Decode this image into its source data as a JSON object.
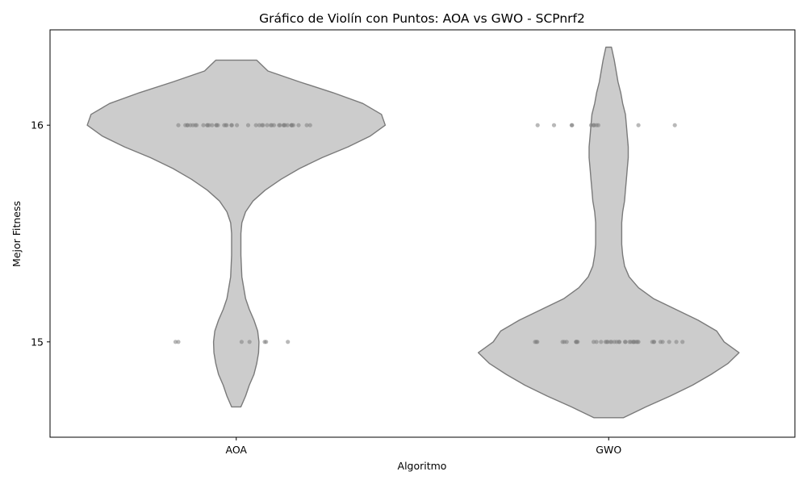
{
  "chart_data": {
    "type": "violin",
    "title": "Gráfico de Violín con Puntos: AOA vs GWO - SCPnrf2",
    "xlabel": "Algoritmo",
    "ylabel": "Mejor Fitness",
    "categories": [
      "AOA",
      "GWO"
    ],
    "yticks": [
      15,
      16
    ],
    "ylim": [
      14.56,
      16.44
    ],
    "grid": false,
    "legend": "none",
    "colors": {
      "violin_fill": "#cccccc",
      "violin_edge": "#7a7a7a",
      "point": "#808080"
    },
    "violins": [
      {
        "category": "AOA",
        "range": [
          14.7,
          16.3
        ],
        "profile": [
          [
            14.7,
            0.025
          ],
          [
            14.75,
            0.05
          ],
          [
            14.8,
            0.07
          ],
          [
            14.85,
            0.095
          ],
          [
            14.9,
            0.11
          ],
          [
            14.95,
            0.12
          ],
          [
            15.0,
            0.122
          ],
          [
            15.05,
            0.115
          ],
          [
            15.1,
            0.095
          ],
          [
            15.15,
            0.07
          ],
          [
            15.2,
            0.05
          ],
          [
            15.3,
            0.03
          ],
          [
            15.4,
            0.025
          ],
          [
            15.5,
            0.025
          ],
          [
            15.55,
            0.03
          ],
          [
            15.6,
            0.05
          ],
          [
            15.65,
            0.09
          ],
          [
            15.7,
            0.155
          ],
          [
            15.75,
            0.24
          ],
          [
            15.8,
            0.34
          ],
          [
            15.85,
            0.46
          ],
          [
            15.9,
            0.6
          ],
          [
            15.95,
            0.72
          ],
          [
            16.0,
            0.8
          ],
          [
            16.05,
            0.78
          ],
          [
            16.1,
            0.68
          ],
          [
            16.15,
            0.52
          ],
          [
            16.2,
            0.34
          ],
          [
            16.25,
            0.17
          ],
          [
            16.3,
            0.11
          ]
        ],
        "points": [
          {
            "value": 16,
            "count": 44
          },
          {
            "value": 15,
            "count": 7
          }
        ]
      },
      {
        "category": "GWO",
        "range": [
          14.65,
          16.36
        ],
        "profile": [
          [
            14.65,
            0.08
          ],
          [
            14.7,
            0.2
          ],
          [
            14.75,
            0.33
          ],
          [
            14.8,
            0.45
          ],
          [
            14.85,
            0.55
          ],
          [
            14.9,
            0.64
          ],
          [
            14.95,
            0.7
          ],
          [
            15.0,
            0.62
          ],
          [
            15.05,
            0.58
          ],
          [
            15.1,
            0.48
          ],
          [
            15.15,
            0.36
          ],
          [
            15.2,
            0.24
          ],
          [
            15.25,
            0.16
          ],
          [
            15.3,
            0.11
          ],
          [
            15.35,
            0.085
          ],
          [
            15.4,
            0.075
          ],
          [
            15.45,
            0.07
          ],
          [
            15.5,
            0.07
          ],
          [
            15.55,
            0.07
          ],
          [
            15.6,
            0.075
          ],
          [
            15.65,
            0.085
          ],
          [
            15.7,
            0.09
          ],
          [
            15.75,
            0.095
          ],
          [
            15.8,
            0.1
          ],
          [
            15.85,
            0.105
          ],
          [
            15.9,
            0.105
          ],
          [
            15.95,
            0.1
          ],
          [
            16.0,
            0.095
          ],
          [
            16.05,
            0.09
          ],
          [
            16.1,
            0.075
          ],
          [
            16.15,
            0.065
          ],
          [
            16.2,
            0.05
          ],
          [
            16.25,
            0.04
          ],
          [
            16.3,
            0.03
          ],
          [
            16.36,
            0.015
          ]
        ],
        "points": [
          {
            "value": 16,
            "count": 11
          },
          {
            "value": 15,
            "count": 40
          }
        ]
      }
    ]
  }
}
